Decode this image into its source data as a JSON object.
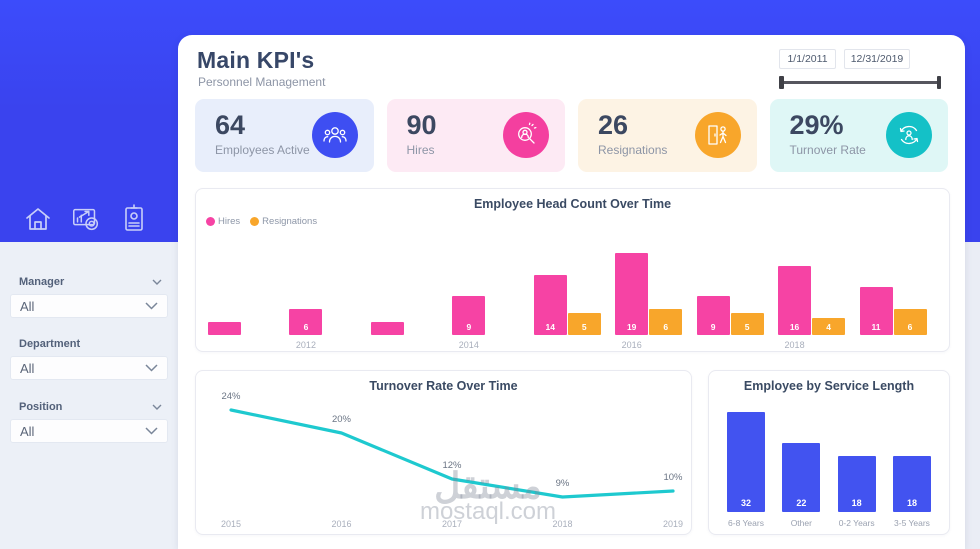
{
  "app": {
    "title": "Main KPI's",
    "subtitle": "Personnel Management"
  },
  "date_filter": {
    "start": "1/1/2011",
    "end": "12/31/2019"
  },
  "sidebar": {
    "icons": [
      {
        "name": "home-icon"
      },
      {
        "name": "report-chart-icon"
      },
      {
        "name": "id-card-icon"
      }
    ],
    "filters": [
      {
        "label": "Manager",
        "value": "All"
      },
      {
        "label": "Department",
        "value": "All"
      },
      {
        "label": "Position",
        "value": "All"
      }
    ]
  },
  "kpis": [
    {
      "value": "64",
      "label": "Employees Active",
      "icon": "team-icon",
      "accent": "#3e4ef2",
      "bg": "#e8eefb"
    },
    {
      "value": "90",
      "label": "Hires",
      "icon": "hire-search-icon",
      "accent": "#f43f9f",
      "bg": "#fdeaf4"
    },
    {
      "value": "26",
      "label": "Resignations",
      "icon": "resignation-door-icon",
      "accent": "#f8a62b",
      "bg": "#fdf3e4"
    },
    {
      "value": "29%",
      "label": "Turnover Rate",
      "icon": "turnover-cycle-icon",
      "accent": "#14c1c7",
      "bg": "#dff7f6"
    }
  ],
  "chart_data": [
    {
      "type": "bar",
      "title": "Employee Head Count Over Time",
      "categories": [
        "2011",
        "2012",
        "2013",
        "2014",
        "2015",
        "2016",
        "2017",
        "2018",
        "2019"
      ],
      "series": [
        {
          "name": "Hires",
          "color": "#f643a4",
          "values": [
            3,
            6,
            3,
            9,
            14,
            19,
            9,
            16,
            11
          ]
        },
        {
          "name": "Resignations",
          "color": "#f8a62b",
          "values": [
            null,
            null,
            null,
            null,
            5,
            6,
            5,
            4,
            6
          ]
        }
      ],
      "x_tick_labels": [
        "",
        "2012",
        "",
        "2014",
        "",
        "2016",
        "",
        "2018",
        ""
      ],
      "legend_position": "top-left",
      "ylim": [
        0,
        20
      ],
      "grid": false
    },
    {
      "type": "line",
      "title": "Turnover Rate Over Time",
      "categories": [
        "2015",
        "2016",
        "2017",
        "2018",
        "2019"
      ],
      "values": [
        24,
        20,
        12,
        9,
        10
      ],
      "point_labels": [
        "24%",
        "20%",
        "12%",
        "9%",
        "10%"
      ],
      "color": "#1ec9cf",
      "ylim": [
        0,
        30
      ],
      "grid": false
    },
    {
      "type": "bar",
      "title": "Employee by Service Length",
      "categories": [
        "6-8 Years",
        "Other",
        "0-2 Years",
        "3-5 Years"
      ],
      "values": [
        32,
        22,
        18,
        18
      ],
      "color": "#4253f0",
      "ylim": [
        0,
        35
      ],
      "grid": false
    }
  ],
  "watermark": {
    "line1": "مستقل",
    "line2": "mostaql.com"
  }
}
